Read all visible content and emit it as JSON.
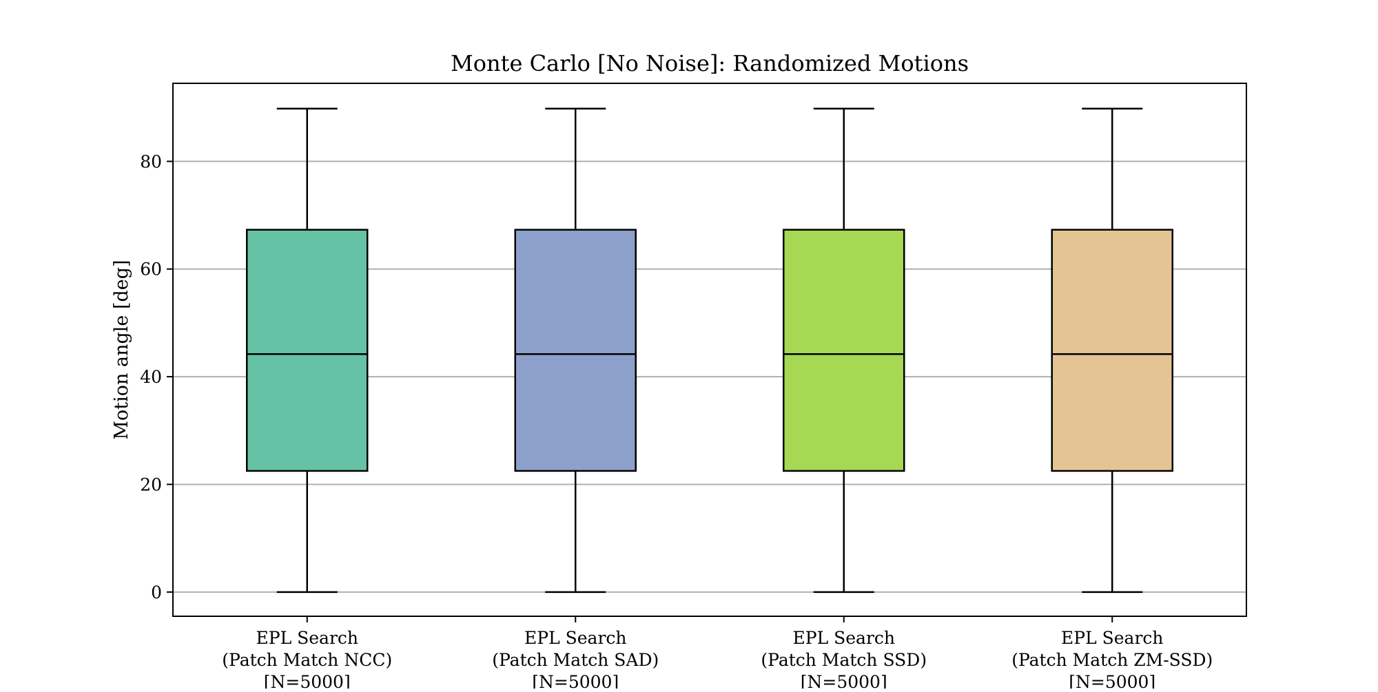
{
  "chart_data": {
    "type": "boxplot",
    "title": "Monte Carlo [No Noise]: Randomized Motions",
    "xlabel": "",
    "ylabel": "Motion angle [deg]",
    "ylim": [
      -4.5,
      94.5
    ],
    "yticks": [
      0,
      20,
      40,
      60,
      80
    ],
    "grid": "y",
    "legend": "none",
    "categories": [
      [
        "EPL Search",
        "(Patch Match NCC)",
        "[N=5000]"
      ],
      [
        "EPL Search",
        "(Patch Match SAD)",
        "[N=5000]"
      ],
      [
        "EPL Search",
        "(Patch Match SSD)",
        "[N=5000]"
      ],
      [
        "EPL Search",
        "(Patch Match ZM-SSD)",
        "[N=5000]"
      ]
    ],
    "boxes": [
      {
        "whisker_low": 0,
        "q1": 22.5,
        "median": 44.2,
        "q3": 67.3,
        "whisker_high": 89.8,
        "color": "#66c2a5"
      },
      {
        "whisker_low": 0,
        "q1": 22.5,
        "median": 44.2,
        "q3": 67.3,
        "whisker_high": 89.8,
        "color": "#8da0cb"
      },
      {
        "whisker_low": 0,
        "q1": 22.5,
        "median": 44.2,
        "q3": 67.3,
        "whisker_high": 89.8,
        "color": "#a6d854"
      },
      {
        "whisker_low": 0,
        "q1": 22.5,
        "median": 44.2,
        "q3": 67.3,
        "whisker_high": 89.8,
        "color": "#e5c494"
      }
    ]
  }
}
